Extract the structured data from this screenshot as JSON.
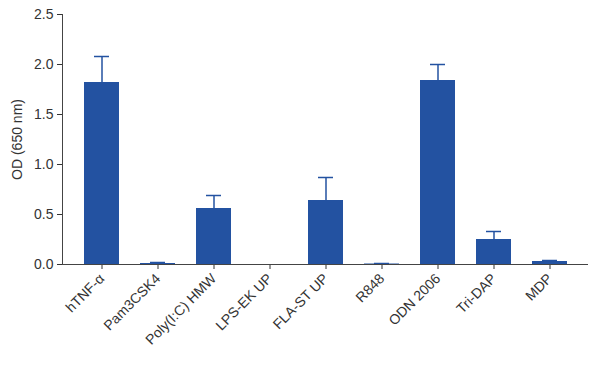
{
  "chart_data": {
    "type": "bar",
    "categories": [
      "hTNF-α",
      "Pam3CSK4",
      "Poly(I:C) HMW",
      "LPS-EK UP",
      "FLA-ST UP",
      "R848",
      "ODN 2006",
      "Tri-DAP",
      "MDP"
    ],
    "values": [
      1.82,
      0.01,
      0.56,
      0,
      0.64,
      0.005,
      1.84,
      0.25,
      0.03
    ],
    "errors": [
      0.26,
      0.01,
      0.13,
      0,
      0.23,
      0.005,
      0.16,
      0.08,
      0.01
    ],
    "color": "#2352a1",
    "y_label": "OD (650 nm)",
    "ylim": [
      0,
      2.5
    ],
    "yticks": [
      {
        "value": 0,
        "label": "0.0"
      },
      0.5,
      {
        "value": 1,
        "label": "1.0"
      },
      1.5,
      {
        "value": 2,
        "label": "2.0"
      },
      2.5
    ],
    "grid": false
  }
}
